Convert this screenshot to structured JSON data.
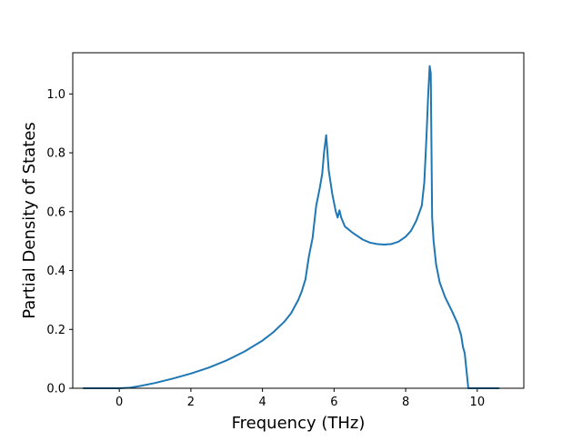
{
  "chart_data": {
    "type": "line",
    "title": "",
    "xlabel": "Frequency (THz)",
    "ylabel": "Partial Density of States",
    "xlim": [
      -1.3,
      11.3
    ],
    "ylim": [
      0,
      1.14
    ],
    "xticks": [
      0,
      2,
      4,
      6,
      8,
      10
    ],
    "yticks": [
      0.0,
      0.2,
      0.4,
      0.6,
      0.8,
      1.0
    ],
    "xtick_labels": [
      "0",
      "2",
      "4",
      "6",
      "8",
      "10"
    ],
    "ytick_labels": [
      "0.0",
      "0.2",
      "0.4",
      "0.6",
      "0.8",
      "1.0"
    ],
    "grid": false,
    "legend": "none",
    "series": [
      {
        "color": "#1f77b4",
        "x": [
          -1.0,
          -0.5,
          0.0,
          0.3,
          0.6,
          1.0,
          1.5,
          2.0,
          2.5,
          3.0,
          3.5,
          4.0,
          4.3,
          4.6,
          4.8,
          5.0,
          5.1,
          5.2,
          5.25,
          5.3,
          5.4,
          5.5,
          5.6,
          5.67,
          5.72,
          5.78,
          5.85,
          5.95,
          6.05,
          6.1,
          6.15,
          6.2,
          6.3,
          6.5,
          6.8,
          7.0,
          7.2,
          7.4,
          7.6,
          7.8,
          8.0,
          8.15,
          8.3,
          8.45,
          8.52,
          8.58,
          8.63,
          8.67,
          8.7,
          8.74,
          8.78,
          8.85,
          8.95,
          9.1,
          9.3,
          9.45,
          9.55,
          9.6,
          9.65,
          9.7,
          9.75,
          10.0,
          10.3,
          10.6
        ],
        "y": [
          0.0,
          0.0,
          0.0,
          0.002,
          0.008,
          0.018,
          0.033,
          0.05,
          0.07,
          0.095,
          0.125,
          0.162,
          0.19,
          0.225,
          0.255,
          0.3,
          0.33,
          0.37,
          0.41,
          0.45,
          0.51,
          0.62,
          0.68,
          0.73,
          0.8,
          0.86,
          0.74,
          0.66,
          0.6,
          0.58,
          0.605,
          0.58,
          0.55,
          0.53,
          0.505,
          0.495,
          0.49,
          0.488,
          0.49,
          0.498,
          0.515,
          0.535,
          0.57,
          0.62,
          0.7,
          0.85,
          1.0,
          1.095,
          1.07,
          0.58,
          0.5,
          0.42,
          0.36,
          0.31,
          0.26,
          0.22,
          0.18,
          0.14,
          0.12,
          0.06,
          0.0,
          0.0,
          0.0,
          0.0
        ]
      }
    ]
  }
}
